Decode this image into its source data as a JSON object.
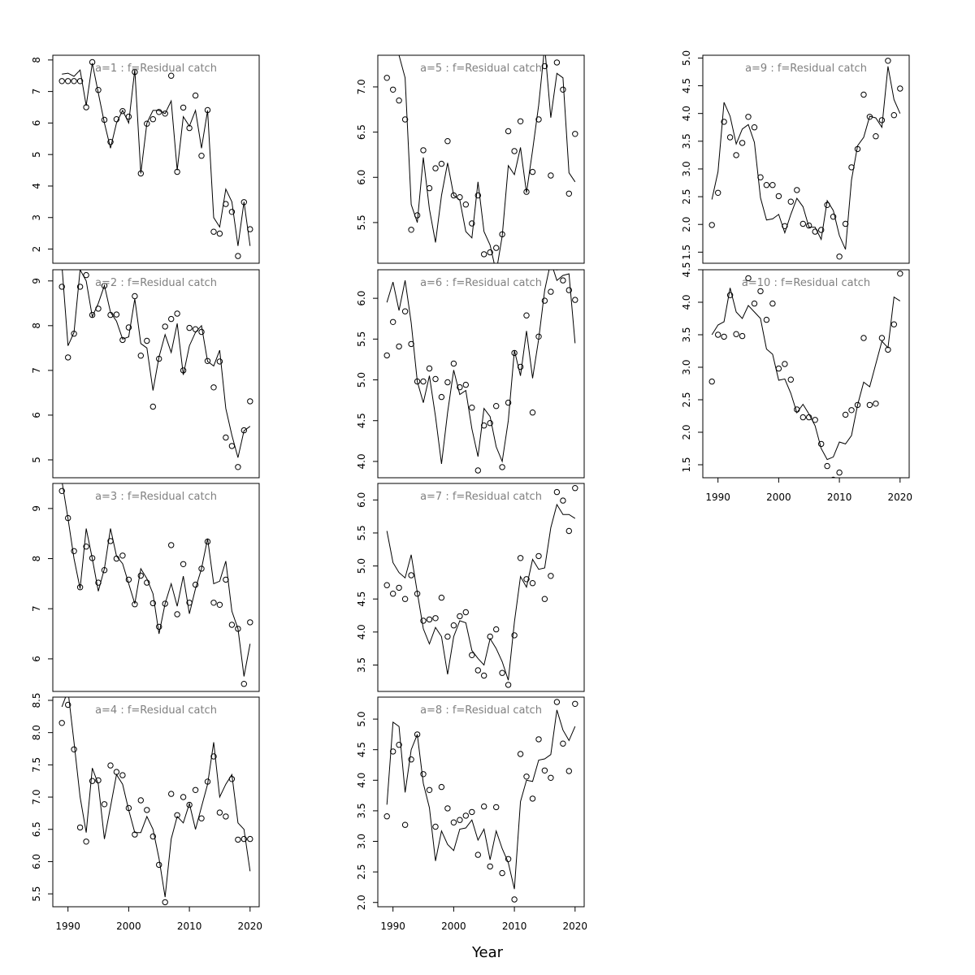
{
  "xlabel": "Year",
  "chart_data": [
    {
      "type": "scatter+line",
      "title": "a=1  :  f=Residual catch",
      "xlim": [
        1987.5,
        2021.5
      ],
      "ylim": [
        1.55,
        8.15
      ],
      "xticks": [
        1990,
        2000,
        2010,
        2020
      ],
      "yticks": [
        2,
        3,
        4,
        5,
        6,
        7,
        8
      ],
      "x": [
        1989,
        1990,
        1991,
        1992,
        1993,
        1994,
        1995,
        1996,
        1997,
        1998,
        1999,
        2000,
        2001,
        2002,
        2003,
        2004,
        2005,
        2006,
        2007,
        2008,
        2009,
        2010,
        2011,
        2012,
        2013,
        2014,
        2015,
        2016,
        2017,
        2018,
        2019,
        2020
      ],
      "observed": [
        7.33,
        7.33,
        7.33,
        7.33,
        6.5,
        7.93,
        7.05,
        6.1,
        5.4,
        6.12,
        6.38,
        6.2,
        7.62,
        4.4,
        5.98,
        6.12,
        6.35,
        6.3,
        7.5,
        4.45,
        6.49,
        5.84,
        6.87,
        4.96,
        6.41,
        2.55,
        2.49,
        3.43,
        3.18,
        1.78,
        3.49,
        2.63
      ],
      "fitted": [
        7.55,
        7.58,
        7.48,
        7.68,
        6.55,
        7.9,
        6.95,
        6.0,
        5.2,
        6.0,
        6.4,
        6.0,
        7.7,
        4.4,
        6.0,
        6.4,
        6.4,
        6.3,
        6.7,
        4.5,
        6.2,
        5.9,
        6.4,
        5.2,
        6.4,
        3.0,
        2.7,
        3.9,
        3.5,
        2.1,
        3.5,
        2.1
      ]
    },
    {
      "type": "scatter+line",
      "title": "a=2  :  f=Residual catch",
      "xlim": [
        1987.5,
        2021.5
      ],
      "ylim": [
        4.6,
        9.25
      ],
      "xticks": [
        1990,
        2000,
        2010,
        2020
      ],
      "yticks": [
        5,
        6,
        7,
        8,
        9
      ],
      "x": [
        1989,
        1990,
        1991,
        1992,
        1993,
        1994,
        1995,
        1996,
        1997,
        1998,
        1999,
        2000,
        2001,
        2002,
        2003,
        2004,
        2005,
        2006,
        2007,
        2008,
        2009,
        2010,
        2011,
        2012,
        2013,
        2014,
        2015,
        2016,
        2017,
        2018,
        2019,
        2020
      ],
      "observed": [
        8.87,
        7.29,
        7.82,
        8.87,
        9.13,
        8.24,
        8.38,
        8.89,
        8.24,
        8.25,
        7.68,
        7.96,
        8.66,
        7.33,
        7.66,
        6.19,
        7.26,
        7.98,
        8.15,
        8.27,
        7.0,
        7.95,
        7.92,
        7.86,
        7.21,
        6.62,
        7.2,
        5.5,
        5.31,
        4.84,
        5.66,
        6.31
      ],
      "fitted": [
        9.35,
        7.55,
        7.85,
        9.25,
        9.0,
        8.2,
        8.5,
        8.9,
        8.3,
        8.1,
        7.7,
        7.75,
        8.6,
        7.6,
        7.5,
        6.55,
        7.3,
        7.8,
        7.4,
        8.05,
        6.9,
        7.55,
        7.85,
        8.0,
        7.2,
        7.1,
        7.45,
        6.15,
        5.55,
        5.05,
        5.65,
        5.75
      ]
    },
    {
      "type": "scatter+line",
      "title": "a=3  :  f=Residual catch",
      "xlim": [
        1987.5,
        2021.5
      ],
      "ylim": [
        5.35,
        9.5
      ],
      "xticks": [
        1990,
        2000,
        2010,
        2020
      ],
      "yticks": [
        6,
        7,
        8,
        9
      ],
      "x": [
        1989,
        1990,
        1991,
        1992,
        1993,
        1994,
        1995,
        1996,
        1997,
        1998,
        1999,
        2000,
        2001,
        2002,
        2003,
        2004,
        2005,
        2006,
        2007,
        2008,
        2009,
        2010,
        2011,
        2012,
        2013,
        2014,
        2015,
        2016,
        2017,
        2018,
        2019,
        2020
      ],
      "observed": [
        9.35,
        8.81,
        8.15,
        7.43,
        8.24,
        8.01,
        7.52,
        7.77,
        8.35,
        8.0,
        8.06,
        7.58,
        7.09,
        7.66,
        7.52,
        7.11,
        6.64,
        7.1,
        8.27,
        6.89,
        7.89,
        7.12,
        7.48,
        7.8,
        8.34,
        7.12,
        7.08,
        7.58,
        6.68,
        6.6,
        5.5,
        6.73
      ],
      "fitted": [
        9.55,
        8.8,
        8.0,
        7.4,
        8.6,
        8.0,
        7.35,
        7.8,
        8.6,
        8.05,
        7.9,
        7.5,
        7.1,
        7.8,
        7.6,
        7.3,
        6.5,
        7.1,
        7.5,
        7.05,
        7.65,
        6.9,
        7.4,
        7.8,
        8.4,
        7.5,
        7.55,
        7.95,
        6.95,
        6.6,
        5.65,
        6.3
      ]
    },
    {
      "type": "scatter+line",
      "title": "a=4  :  f=Residual catch",
      "xlim": [
        1987.5,
        2021.5
      ],
      "ylim": [
        5.3,
        8.55
      ],
      "xticks": [
        1990,
        2000,
        2010,
        2020
      ],
      "yticks": [
        5.5,
        6.0,
        6.5,
        7.0,
        7.5,
        8.0,
        8.5
      ],
      "x": [
        1989,
        1990,
        1991,
        1992,
        1993,
        1994,
        1995,
        1996,
        1997,
        1998,
        1999,
        2000,
        2001,
        2002,
        2003,
        2004,
        2005,
        2006,
        2007,
        2008,
        2009,
        2010,
        2011,
        2012,
        2013,
        2014,
        2015,
        2016,
        2017,
        2018,
        2019,
        2020
      ],
      "observed": [
        8.15,
        8.43,
        7.74,
        6.53,
        6.31,
        7.25,
        7.26,
        6.89,
        7.49,
        7.39,
        7.34,
        6.83,
        6.42,
        6.95,
        6.8,
        6.39,
        5.95,
        5.37,
        7.05,
        6.72,
        7.0,
        6.88,
        7.11,
        6.67,
        7.24,
        7.63,
        6.76,
        6.7,
        7.28,
        6.34,
        6.35,
        6.35
      ],
      "fitted": [
        8.4,
        8.65,
        7.85,
        7.0,
        6.45,
        7.45,
        7.2,
        6.35,
        6.85,
        7.35,
        7.2,
        6.8,
        6.45,
        6.45,
        6.7,
        6.5,
        6.05,
        5.45,
        6.35,
        6.7,
        6.6,
        6.9,
        6.5,
        6.85,
        7.2,
        7.85,
        7.0,
        7.2,
        7.35,
        6.6,
        6.5,
        5.85
      ]
    },
    {
      "type": "scatter+line",
      "title": "a=5  :  f=Residual catch",
      "xlim": [
        1987.5,
        2021.5
      ],
      "ylim": [
        5.05,
        7.35
      ],
      "xticks": [
        1990,
        2000,
        2010,
        2020
      ],
      "yticks": [
        5.5,
        6.0,
        6.5,
        7.0
      ],
      "x": [
        1989,
        1990,
        1991,
        1992,
        1993,
        1994,
        1995,
        1996,
        1997,
        1998,
        1999,
        2000,
        2001,
        2002,
        2003,
        2004,
        2005,
        2006,
        2007,
        2008,
        2009,
        2010,
        2011,
        2012,
        2013,
        2014,
        2015,
        2016,
        2017,
        2018,
        2019,
        2020
      ],
      "observed": [
        7.1,
        6.97,
        6.85,
        6.64,
        5.42,
        5.58,
        6.3,
        5.88,
        6.1,
        6.15,
        6.4,
        5.8,
        5.78,
        5.7,
        5.49,
        5.8,
        5.15,
        5.17,
        5.22,
        5.37,
        6.51,
        6.29,
        6.62,
        5.84,
        6.06,
        6.64,
        7.23,
        6.02,
        7.27,
        6.97,
        5.82,
        6.48
      ],
      "fitted": [
        7.55,
        7.5,
        7.35,
        7.1,
        5.7,
        5.5,
        6.22,
        5.65,
        5.28,
        5.8,
        6.16,
        5.8,
        5.75,
        5.4,
        5.33,
        5.95,
        5.4,
        5.25,
        4.95,
        5.35,
        6.13,
        6.03,
        6.33,
        5.83,
        6.3,
        6.8,
        7.45,
        6.66,
        7.15,
        7.1,
        6.05,
        5.95
      ]
    },
    {
      "type": "scatter+line",
      "title": "a=6  :  f=Residual catch",
      "xlim": [
        1987.5,
        2021.5
      ],
      "ylim": [
        3.8,
        6.35
      ],
      "xticks": [
        1990,
        2000,
        2010,
        2020
      ],
      "yticks": [
        4.0,
        4.5,
        5.0,
        5.5,
        6.0
      ],
      "x": [
        1989,
        1990,
        1991,
        1992,
        1993,
        1994,
        1995,
        1996,
        1997,
        1998,
        1999,
        2000,
        2001,
        2002,
        2003,
        2004,
        2005,
        2006,
        2007,
        2008,
        2009,
        2010,
        2011,
        2012,
        2013,
        2014,
        2015,
        2016,
        2017,
        2018,
        2019,
        2020
      ],
      "observed": [
        5.3,
        5.71,
        5.41,
        5.84,
        5.44,
        4.98,
        4.98,
        5.14,
        5.01,
        4.79,
        4.97,
        5.2,
        4.91,
        4.94,
        4.66,
        3.89,
        4.44,
        4.47,
        4.68,
        3.93,
        4.72,
        5.33,
        5.16,
        5.79,
        4.6,
        5.53,
        5.97,
        6.08,
        6.38,
        6.22,
        6.1,
        5.98
      ],
      "fitted": [
        5.95,
        6.2,
        5.85,
        6.22,
        5.7,
        4.98,
        4.72,
        5.05,
        4.55,
        3.97,
        4.6,
        5.12,
        4.82,
        4.87,
        4.4,
        4.06,
        4.65,
        4.55,
        4.18,
        4.0,
        4.5,
        5.36,
        5.05,
        5.6,
        5.02,
        5.5,
        6.1,
        6.45,
        6.22,
        6.28,
        6.3,
        5.45
      ]
    },
    {
      "type": "scatter+line",
      "title": "a=7  :  f=Residual catch",
      "xlim": [
        1987.5,
        2021.5
      ],
      "ylim": [
        3.1,
        6.25
      ],
      "xticks": [
        1990,
        2000,
        2010,
        2020
      ],
      "yticks": [
        3.5,
        4.0,
        4.5,
        5.0,
        5.5,
        6.0
      ],
      "x": [
        1989,
        1990,
        1991,
        1992,
        1993,
        1994,
        1995,
        1996,
        1997,
        1998,
        1999,
        2000,
        2001,
        2002,
        2003,
        2004,
        2005,
        2006,
        2007,
        2008,
        2009,
        2010,
        2011,
        2012,
        2013,
        2014,
        2015,
        2016,
        2017,
        2018,
        2019,
        2020
      ],
      "observed": [
        4.71,
        4.58,
        4.67,
        4.5,
        4.86,
        4.58,
        4.17,
        4.19,
        4.21,
        4.52,
        3.93,
        4.1,
        4.24,
        4.3,
        3.65,
        3.42,
        3.34,
        3.93,
        4.04,
        3.38,
        3.2,
        3.95,
        5.12,
        4.8,
        4.74,
        5.15,
        4.5,
        4.85,
        6.12,
        5.99,
        5.53,
        6.18
      ],
      "fitted": [
        5.53,
        5.05,
        4.9,
        4.82,
        5.17,
        4.6,
        4.05,
        3.82,
        4.07,
        3.93,
        3.36,
        3.93,
        4.17,
        4.14,
        3.72,
        3.6,
        3.5,
        3.9,
        3.75,
        3.55,
        3.27,
        4.15,
        4.84,
        4.68,
        5.1,
        4.95,
        4.97,
        5.58,
        5.93,
        5.78,
        5.78,
        5.72
      ]
    },
    {
      "type": "scatter+line",
      "title": "a=8  :  f=Residual catch",
      "xlim": [
        1987.5,
        2021.5
      ],
      "ylim": [
        1.93,
        5.36
      ],
      "xticks": [
        1990,
        2000,
        2010,
        2020
      ],
      "yticks": [
        2.0,
        2.5,
        3.0,
        3.5,
        4.0,
        4.5,
        5.0
      ],
      "x": [
        1989,
        1990,
        1991,
        1992,
        1993,
        1994,
        1995,
        1996,
        1997,
        1998,
        1999,
        2000,
        2001,
        2002,
        2003,
        2004,
        2005,
        2006,
        2007,
        2008,
        2009,
        2010,
        2011,
        2012,
        2013,
        2014,
        2015,
        2016,
        2017,
        2018,
        2019,
        2020
      ],
      "observed": [
        3.41,
        4.47,
        4.58,
        3.27,
        4.34,
        4.75,
        4.1,
        3.84,
        3.24,
        3.89,
        3.54,
        3.31,
        3.35,
        3.42,
        3.48,
        2.78,
        3.57,
        2.59,
        3.56,
        2.48,
        2.71,
        2.05,
        4.43,
        4.06,
        3.7,
        4.67,
        4.16,
        4.04,
        5.28,
        4.6,
        4.15,
        5.25
      ],
      "fitted": [
        3.6,
        4.95,
        4.88,
        3.8,
        4.5,
        4.75,
        3.95,
        3.55,
        2.68,
        3.17,
        2.95,
        2.85,
        3.2,
        3.22,
        3.35,
        3.02,
        3.2,
        2.7,
        3.17,
        2.88,
        2.65,
        2.22,
        3.65,
        4.0,
        3.98,
        4.33,
        4.35,
        4.42,
        5.15,
        4.82,
        4.65,
        4.88
      ]
    },
    {
      "type": "scatter+line",
      "title": "a=9  :  f=Residual catch",
      "xlim": [
        1987.5,
        2021.5
      ],
      "ylim": [
        1.3,
        5.05
      ],
      "xticks": [
        1990,
        2000,
        2010,
        2020
      ],
      "yticks": [
        1.5,
        2.0,
        2.5,
        3.0,
        3.5,
        4.0,
        4.5,
        5.0
      ],
      "x": [
        1989,
        1990,
        1991,
        1992,
        1993,
        1994,
        1995,
        1996,
        1997,
        1998,
        1999,
        2000,
        2001,
        2002,
        2003,
        2004,
        2005,
        2006,
        2007,
        2008,
        2009,
        2010,
        2011,
        2012,
        2013,
        2014,
        2015,
        2016,
        2017,
        2018,
        2019,
        2020
      ],
      "observed": [
        1.99,
        2.57,
        3.85,
        3.57,
        3.25,
        3.47,
        3.94,
        3.75,
        2.85,
        2.71,
        2.71,
        2.51,
        1.97,
        2.41,
        2.62,
        2.01,
        1.98,
        1.87,
        1.9,
        2.35,
        2.14,
        1.42,
        2.01,
        3.03,
        3.36,
        4.34,
        3.94,
        3.59,
        3.88,
        4.95,
        3.97,
        4.45
      ],
      "fitted": [
        2.45,
        2.95,
        4.2,
        3.95,
        3.45,
        3.72,
        3.8,
        3.48,
        2.48,
        2.08,
        2.1,
        2.18,
        1.85,
        2.18,
        2.47,
        2.32,
        1.95,
        1.95,
        1.73,
        2.43,
        2.25,
        1.8,
        1.55,
        2.8,
        3.42,
        3.57,
        3.95,
        3.92,
        3.75,
        4.85,
        4.25,
        4.0
      ]
    },
    {
      "type": "scatter+line",
      "title": "a=10  :  f=Residual catch",
      "xlim": [
        1987.5,
        2021.5
      ],
      "ylim": [
        1.3,
        4.5
      ],
      "xticks": [
        1990,
        2000,
        2010,
        2020
      ],
      "yticks": [
        1.5,
        2.0,
        2.5,
        3.0,
        3.5,
        4.0,
        4.5
      ],
      "x": [
        1989,
        1990,
        1991,
        1992,
        1993,
        1994,
        1995,
        1996,
        1997,
        1998,
        1999,
        2000,
        2001,
        2002,
        2003,
        2004,
        2005,
        2006,
        2007,
        2008,
        2009,
        2010,
        2011,
        2012,
        2013,
        2014,
        2015,
        2016,
        2017,
        2018,
        2019,
        2020
      ],
      "observed": [
        2.78,
        3.5,
        3.47,
        4.11,
        3.51,
        3.48,
        4.37,
        3.98,
        4.17,
        3.73,
        3.98,
        2.98,
        3.05,
        2.81,
        2.35,
        2.23,
        2.23,
        2.19,
        1.82,
        1.48,
        1.27,
        1.38,
        2.27,
        2.34,
        2.42,
        3.45,
        2.42,
        2.44,
        3.45,
        3.27,
        3.66,
        4.44
      ],
      "fitted": [
        3.5,
        3.65,
        3.7,
        4.22,
        3.85,
        3.75,
        3.95,
        3.85,
        3.75,
        3.28,
        3.2,
        2.8,
        2.82,
        2.6,
        2.3,
        2.43,
        2.28,
        2.1,
        1.75,
        1.58,
        1.62,
        1.85,
        1.82,
        1.95,
        2.42,
        2.77,
        2.7,
        3.05,
        3.4,
        3.3,
        4.08,
        4.02
      ]
    }
  ]
}
